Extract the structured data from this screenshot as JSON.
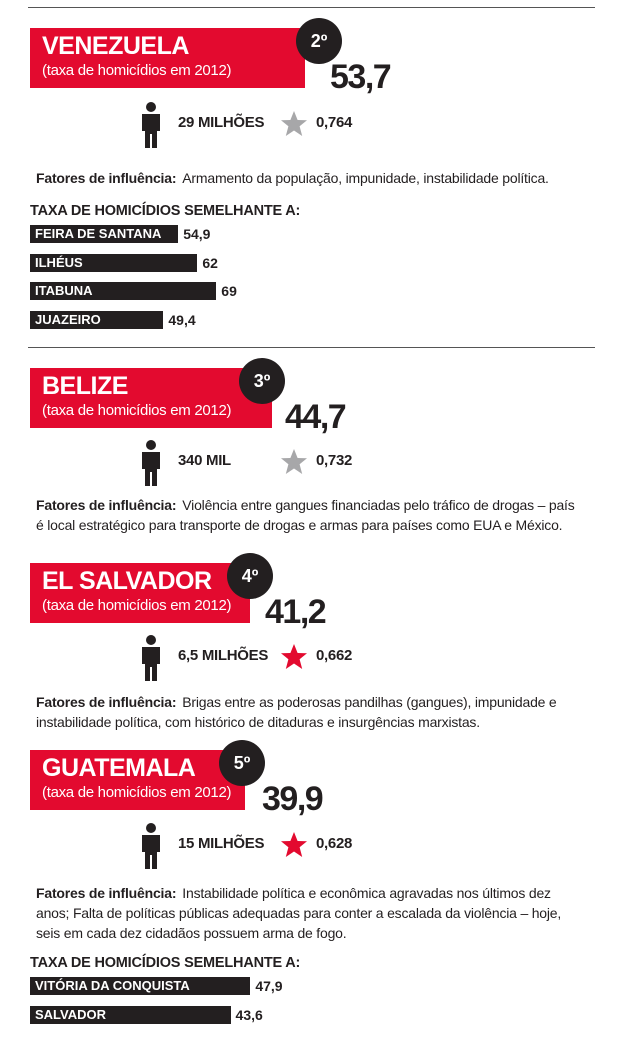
{
  "countries": [
    {
      "name": "VENEZUELA",
      "subtitle": "(taxa de homicídios em 2012)",
      "rank": "2º",
      "rate": "53,7",
      "population": "29 MILHÕES",
      "idh": "0,764",
      "star_color": "#a7a7a9",
      "factors_label": "Fatores de influência:",
      "factors": "Armamento da população, impunidade, instabilidade política.",
      "similar": {
        "title": "TAXA DE HOMICÍDIOS SEMELHANTE A:",
        "items": [
          {
            "name": "FEIRA DE SANTANA",
            "value": 54.9,
            "label": "54,9"
          },
          {
            "name": "ILHÉUS",
            "value": 62,
            "label": "62"
          },
          {
            "name": "ITABUNA",
            "value": 69,
            "label": "69"
          },
          {
            "name": "JUAZEIRO",
            "value": 49.4,
            "label": "49,4"
          }
        ]
      }
    },
    {
      "name": "BELIZE",
      "subtitle": "(taxa de homicídios em 2012)",
      "rank": "3º",
      "rate": "44,7",
      "population": "340 MIL",
      "idh": "0,732",
      "star_color": "#a7a7a9",
      "factors_label": "Fatores de influência:",
      "factors": "Violência entre gangues financiadas pelo tráfico de drogas – país é local estratégico para transporte de drogas e armas para países como EUA e México."
    },
    {
      "name": "EL SALVADOR",
      "subtitle": "(taxa de homicídios em 2012)",
      "rank": "4º",
      "rate": "41,2",
      "population": "6,5 MILHÕES",
      "idh": "0,662",
      "star_color": "#e30a2f",
      "factors_label": "Fatores de influência:",
      "factors": "Brigas entre as poderosas pandilhas (gangues), impunidade e instabilidade política, com histórico de ditaduras e insurgências marxistas."
    },
    {
      "name": "GUATEMALA",
      "subtitle": "(taxa de homicídios em 2012)",
      "rank": "5º",
      "rate": "39,9",
      "population": "15 MILHÕES",
      "idh": "0,628",
      "star_color": "#e30a2f",
      "factors_label": "Fatores de influência:",
      "factors": "Instabilidade política e econômica agravadas nos últimos dez anos; Falta de políticas públicas adequadas para conter a escalada da violência – hoje, seis em cada dez cidadãos possuem arma de fogo.",
      "similar": {
        "title": "TAXA DE HOMICÍDIOS SEMELHANTE A:",
        "items": [
          {
            "name": "VITÓRIA DA CONQUISTA",
            "value": 47.9,
            "label": "47,9"
          },
          {
            "name": "SALVADOR",
            "value": 43.6,
            "label": "43,6"
          }
        ]
      }
    }
  ]
}
